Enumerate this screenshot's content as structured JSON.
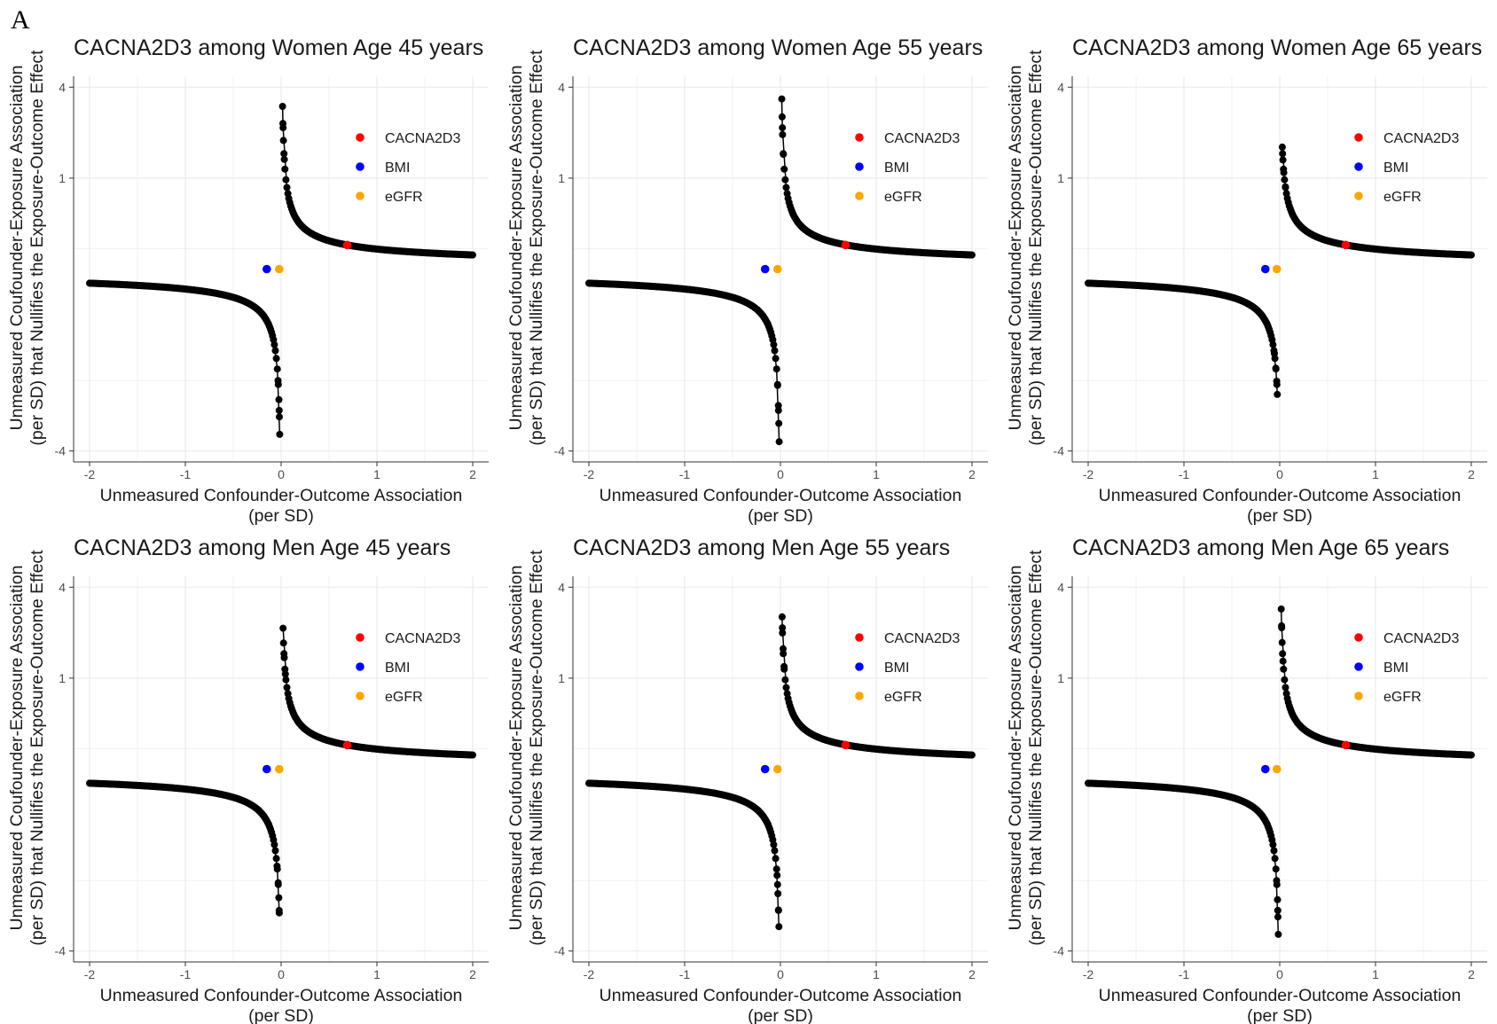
{
  "panel_label": "A",
  "colors": {
    "curve": "#000000",
    "CACNA2D3": "#ff0000",
    "BMI": "#0000ff",
    "eGFR": "#ffa500",
    "grid": "#ebebeb"
  },
  "chart_data": [
    {
      "type": "scatter",
      "title": "CACNA2D3 among Women Age 45 years",
      "xlabel": "Unmeasured Confounder-Outcome Association\n(per SD)",
      "ylabel": "Unmeasured Coufounder-Exposure Association\n(per SD) that Nullifies the Exposure-Outcome Effect",
      "xlim": [
        -2,
        2
      ],
      "ylim": [
        -4,
        4
      ],
      "x_ticks": [
        "-2",
        "-1",
        "0",
        "1",
        "2"
      ],
      "y_ticks": [
        "-4",
        "1",
        "4"
      ],
      "grid": true,
      "legend_position": "top-right",
      "series": [
        {
          "name": "CACNA2D3",
          "x": [
            0.69
          ],
          "y": [
            0.07
          ]
        },
        {
          "name": "BMI",
          "x": [
            -0.15
          ],
          "y": [
            0.0
          ]
        },
        {
          "name": "eGFR",
          "x": [
            -0.02
          ],
          "y": [
            0.0
          ]
        }
      ],
      "curve": {
        "pos_branch_first_y": 3.2,
        "neg_branch_last_y": -3.3
      }
    },
    {
      "type": "scatter",
      "title": "CACNA2D3 among Women Age 55 years",
      "xlabel": "Unmeasured Confounder-Outcome Association\n(per SD)",
      "ylabel": "Unmeasured Coufounder-Exposure Association\n(per SD) that Nullifies the Exposure-Outcome Effect",
      "xlim": [
        -2,
        2
      ],
      "ylim": [
        -4,
        4
      ],
      "x_ticks": [
        "-2",
        "-1",
        "0",
        "1",
        "2"
      ],
      "y_ticks": [
        "-4",
        "1",
        "4"
      ],
      "grid": true,
      "legend_position": "top-right",
      "series": [
        {
          "name": "CACNA2D3",
          "x": [
            0.68
          ],
          "y": [
            0.07
          ]
        },
        {
          "name": "BMI",
          "x": [
            -0.16
          ],
          "y": [
            0.0
          ]
        },
        {
          "name": "eGFR",
          "x": [
            -0.03
          ],
          "y": [
            0.0
          ]
        }
      ],
      "curve": {
        "pos_branch_first_y": 3.5,
        "neg_branch_last_y": -3.6
      }
    },
    {
      "type": "scatter",
      "title": "CACNA2D3 among Women Age 65 years",
      "xlabel": "Unmeasured Confounder-Outcome Association\n(per SD)",
      "ylabel": "Unmeasured Coufounder-Exposure Association\n(per SD) that Nullifies the Exposure-Outcome Effect",
      "xlim": [
        -2,
        2
      ],
      "ylim": [
        -4,
        4
      ],
      "x_ticks": [
        "-2",
        "-1",
        "0",
        "1",
        "2"
      ],
      "y_ticks": [
        "-4",
        "1",
        "4"
      ],
      "grid": true,
      "legend_position": "top-right",
      "series": [
        {
          "name": "CACNA2D3",
          "x": [
            0.69
          ],
          "y": [
            0.07
          ]
        },
        {
          "name": "BMI",
          "x": [
            -0.15
          ],
          "y": [
            0.0
          ]
        },
        {
          "name": "eGFR",
          "x": [
            -0.03
          ],
          "y": [
            0.0
          ]
        }
      ],
      "curve": {
        "pos_branch_first_y": 1.8,
        "neg_branch_last_y": -1.9
      }
    },
    {
      "type": "scatter",
      "title": "CACNA2D3 among Men Age 45 years",
      "xlabel": "Unmeasured Confounder-Outcome Association\n(per SD)",
      "ylabel": "Unmeasured Coufounder-Exposure Association\n(per SD) that Nullifies the Exposure-Outcome Effect",
      "xlim": [
        -2,
        2
      ],
      "ylim": [
        -4,
        4
      ],
      "x_ticks": [
        "-2",
        "-1",
        "0",
        "1",
        "2"
      ],
      "y_ticks": [
        "-4",
        "1",
        "4"
      ],
      "grid": true,
      "legend_position": "top-right",
      "series": [
        {
          "name": "CACNA2D3",
          "x": [
            0.69
          ],
          "y": [
            0.07
          ]
        },
        {
          "name": "BMI",
          "x": [
            -0.15
          ],
          "y": [
            0.0
          ]
        },
        {
          "name": "eGFR",
          "x": [
            -0.02
          ],
          "y": [
            0.0
          ]
        }
      ],
      "curve": {
        "pos_branch_first_y": 2.4,
        "neg_branch_last_y": -2.5
      }
    },
    {
      "type": "scatter",
      "title": "CACNA2D3 among Men Age 55 years",
      "xlabel": "Unmeasured Confounder-Outcome Association\n(per SD)",
      "ylabel": "Unmeasured Coufounder-Exposure Association\n(per SD) that Nullifies the Exposure-Outcome Effect",
      "xlim": [
        -2,
        2
      ],
      "ylim": [
        -4,
        4
      ],
      "x_ticks": [
        "-2",
        "-1",
        "0",
        "1",
        "2"
      ],
      "y_ticks": [
        "-4",
        "1",
        "4"
      ],
      "grid": true,
      "legend_position": "top-right",
      "series": [
        {
          "name": "CACNA2D3",
          "x": [
            0.68
          ],
          "y": [
            0.07
          ]
        },
        {
          "name": "BMI",
          "x": [
            -0.16
          ],
          "y": [
            0.0
          ]
        },
        {
          "name": "eGFR",
          "x": [
            -0.03
          ],
          "y": [
            0.0
          ]
        }
      ],
      "curve": {
        "pos_branch_first_y": 2.8,
        "neg_branch_last_y": -3.0
      }
    },
    {
      "type": "scatter",
      "title": "CACNA2D3 among Men Age 65 years",
      "xlabel": "Unmeasured Confounder-Outcome Association\n(per SD)",
      "ylabel": "Unmeasured Coufounder-Exposure Association\n(per SD) that Nullifies the Exposure-Outcome Effect",
      "xlim": [
        -2,
        2
      ],
      "ylim": [
        -4,
        4
      ],
      "x_ticks": [
        "-2",
        "-1",
        "0",
        "1",
        "2"
      ],
      "y_ticks": [
        "-4",
        "1",
        "4"
      ],
      "grid": true,
      "legend_position": "top-right",
      "series": [
        {
          "name": "CACNA2D3",
          "x": [
            0.69
          ],
          "y": [
            0.07
          ]
        },
        {
          "name": "BMI",
          "x": [
            -0.15
          ],
          "y": [
            0.0
          ]
        },
        {
          "name": "eGFR",
          "x": [
            -0.03
          ],
          "y": [
            0.0
          ]
        }
      ],
      "curve": {
        "pos_branch_first_y": 3.1,
        "neg_branch_last_y": -3.3
      }
    }
  ]
}
